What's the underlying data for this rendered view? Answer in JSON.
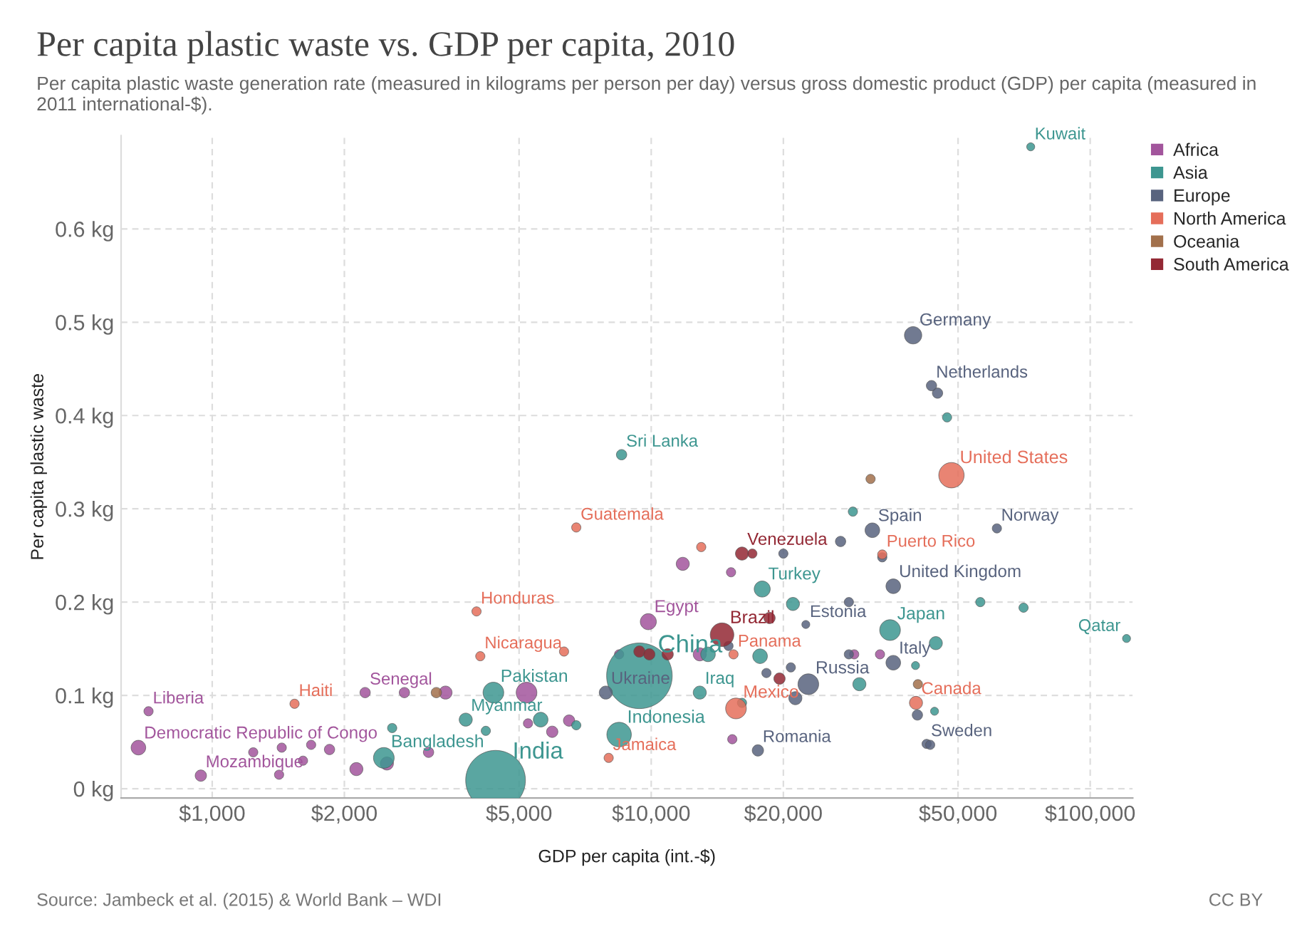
{
  "chart_data": {
    "type": "bubble",
    "title": "Per capita plastic waste vs. GDP per capita, 2010",
    "subtitle": "Per capita plastic waste generation rate (measured in kilograms per person per day) versus gross domestic product (GDP) per capita (measured in 2011 international-$).",
    "xlabel": "GDP per capita (int.-$)",
    "ylabel": "Per capita plastic waste",
    "log": "x",
    "grid": true,
    "legend": "right",
    "xlim": [
      620,
      125000
    ],
    "ylim": [
      -0.01,
      0.7
    ],
    "xticks": [
      {
        "value": 1000,
        "label": "$1,000"
      },
      {
        "value": 2000,
        "label": "$2,000"
      },
      {
        "value": 5000,
        "label": "$5,000"
      },
      {
        "value": 10000,
        "label": "$10,000"
      },
      {
        "value": 20000,
        "label": "$20,000"
      },
      {
        "value": 50000,
        "label": "$50,000"
      },
      {
        "value": 100000,
        "label": "$100,000"
      }
    ],
    "yticks": [
      {
        "value": 0,
        "label": "0 kg"
      },
      {
        "value": 0.1,
        "label": "0.1 kg"
      },
      {
        "value": 0.2,
        "label": "0.2 kg"
      },
      {
        "value": 0.3,
        "label": "0.3 kg"
      },
      {
        "value": 0.4,
        "label": "0.4 kg"
      },
      {
        "value": 0.5,
        "label": "0.5 kg"
      },
      {
        "value": 0.6,
        "label": "0.6 kg"
      }
    ],
    "series": [
      {
        "name": "Africa",
        "color": "#a2559c",
        "x": [
          679,
          716,
          942,
          1240,
          1440,
          1680,
          1850,
          1610,
          1420,
          2130,
          2500,
          2230,
          2740,
          3400,
          5200,
          3110,
          5240,
          5950,
          6500,
          8450,
          9850,
          11800,
          15200,
          12900,
          15300,
          29000,
          33200
        ],
        "values": [
          0.044,
          0.083,
          0.014,
          0.039,
          0.044,
          0.047,
          0.042,
          0.03,
          0.015,
          0.021,
          0.027,
          0.103,
          0.103,
          0.103,
          0.103,
          0.039,
          0.07,
          0.061,
          0.073,
          0.144,
          0.179,
          0.241,
          0.232,
          0.144,
          0.053,
          0.144,
          0.144
        ],
        "sizes": [
          0.05,
          0.02,
          0.03,
          0.02,
          0.02,
          0.02,
          0.025,
          0.02,
          0.02,
          0.04,
          0.04,
          0.025,
          0.025,
          0.04,
          0.1,
          0.025,
          0.02,
          0.03,
          0.03,
          0.02,
          0.06,
          0.04,
          0.02,
          0.04,
          0.02,
          0.02,
          0.02
        ]
      },
      {
        "name": "Asia",
        "color": "#3d9690",
        "x": [
          4420,
          9400,
          4370,
          3780,
          2460,
          2570,
          4200,
          5600,
          6750,
          8450,
          8560,
          12900,
          13470,
          17900,
          21030,
          17700,
          29800,
          35000,
          28800,
          44500,
          40000,
          44200,
          56200,
          70500,
          121000,
          73200,
          47200,
          16100
        ],
        "values": [
          0.009,
          0.121,
          0.103,
          0.074,
          0.033,
          0.065,
          0.062,
          0.074,
          0.068,
          0.058,
          0.358,
          0.103,
          0.144,
          0.214,
          0.198,
          0.142,
          0.112,
          0.17,
          0.297,
          0.156,
          0.132,
          0.083,
          0.2,
          0.194,
          0.161,
          0.688,
          0.398,
          0.092
        ],
        "sizes": [
          0.83,
          1,
          0.1,
          0.04,
          0.1,
          0.02,
          0.02,
          0.05,
          0.02,
          0.14,
          0.025,
          0.04,
          0.05,
          0.06,
          0.04,
          0.05,
          0.04,
          0.1,
          0.02,
          0.04,
          0.015,
          0.015,
          0.02,
          0.02,
          0.015,
          0.015,
          0.02,
          0.02
        ]
      },
      {
        "name": "Europe",
        "color": "#58637e",
        "x": [
          39500,
          44900,
          43500,
          31900,
          61300,
          35600,
          35600,
          42400,
          43200,
          40400,
          27000,
          28200,
          28200,
          33600,
          22500,
          22800,
          21300,
          20800,
          18300,
          20000,
          17500,
          7880,
          15000
        ],
        "values": [
          0.486,
          0.424,
          0.432,
          0.277,
          0.279,
          0.217,
          0.135,
          0.048,
          0.047,
          0.079,
          0.265,
          0.2,
          0.144,
          0.248,
          0.176,
          0.112,
          0.097,
          0.13,
          0.124,
          0.252,
          0.041,
          0.103,
          0.153
        ],
        "sizes": [
          0.07,
          0.025,
          0.025,
          0.05,
          0.02,
          0.05,
          0.05,
          0.02,
          0.02,
          0.025,
          0.025,
          0.02,
          0.02,
          0.02,
          0.015,
          0.1,
          0.04,
          0.02,
          0.02,
          0.02,
          0.03,
          0.04,
          0.02
        ]
      },
      {
        "name": "North America",
        "color": "#e56e5a",
        "x": [
          48300,
          33600,
          40100,
          15600,
          15400,
          6750,
          4000,
          4080,
          6330,
          1540,
          8000,
          13000
        ],
        "values": [
          0.336,
          0.251,
          0.092,
          0.086,
          0.144,
          0.28,
          0.19,
          0.142,
          0.147,
          0.091,
          0.033,
          0.259
        ],
        "sizes": [
          0.15,
          0.02,
          0.04,
          0.1,
          0.02,
          0.02,
          0.02,
          0.02,
          0.02,
          0.02,
          0.02,
          0.02
        ]
      },
      {
        "name": "Oceania",
        "color": "#a2704b",
        "x": [
          3240,
          31600,
          40500
        ],
        "values": [
          0.103,
          0.332,
          0.112
        ],
        "sizes": [
          0.025,
          0.02,
          0.02
        ]
      },
      {
        "name": "South America",
        "color": "#932834",
        "x": [
          14500,
          16100,
          17000,
          18600,
          19600,
          9400,
          9900,
          10900
        ],
        "values": [
          0.165,
          0.252,
          0.252,
          0.183,
          0.118,
          0.147,
          0.144,
          0.144
        ],
        "sizes": [
          0.13,
          0.04,
          0.02,
          0.03,
          0.03,
          0.03,
          0.03,
          0.03
        ]
      }
    ],
    "annotations": [
      {
        "text": "Democratic Republic of Congo",
        "x": 679,
        "y": 0.044
      },
      {
        "text": "Liberia",
        "x": 716,
        "y": 0.083
      },
      {
        "text": "Mozambique",
        "x": 942,
        "y": 0.014
      },
      {
        "text": "Senegal",
        "x": 2230,
        "y": 0.103
      },
      {
        "text": "Egypt",
        "x": 9850,
        "y": 0.179
      },
      {
        "text": "India",
        "x": 4420,
        "y": 0.009
      },
      {
        "text": "China",
        "x": 9400,
        "y": 0.121
      },
      {
        "text": "Pakistan",
        "x": 4370,
        "y": 0.103
      },
      {
        "text": "Myanmar",
        "x": 3780,
        "y": 0.074
      },
      {
        "text": "Bangladesh",
        "x": 2460,
        "y": 0.033
      },
      {
        "text": "Indonesia",
        "x": 8450,
        "y": 0.058
      },
      {
        "text": "Sri Lanka",
        "x": 8560,
        "y": 0.358
      },
      {
        "text": "Iraq",
        "x": 12900,
        "y": 0.103
      },
      {
        "text": "Turkey",
        "x": 17900,
        "y": 0.214
      },
      {
        "text": "Japan",
        "x": 35000,
        "y": 0.17
      },
      {
        "text": "Qatar",
        "x": 121000,
        "y": 0.161
      },
      {
        "text": "Kuwait",
        "x": 73200,
        "y": 0.688
      },
      {
        "text": "Germany",
        "x": 39500,
        "y": 0.486
      },
      {
        "text": "Netherlands",
        "x": 43500,
        "y": 0.432
      },
      {
        "text": "Spain",
        "x": 31900,
        "y": 0.277
      },
      {
        "text": "Norway",
        "x": 61300,
        "y": 0.279
      },
      {
        "text": "United Kingdom",
        "x": 35600,
        "y": 0.217
      },
      {
        "text": "Italy",
        "x": 35600,
        "y": 0.135
      },
      {
        "text": "Sweden",
        "x": 42400,
        "y": 0.048
      },
      {
        "text": "Estonia",
        "x": 22500,
        "y": 0.176
      },
      {
        "text": "Russia",
        "x": 22800,
        "y": 0.112
      },
      {
        "text": "Romania",
        "x": 17500,
        "y": 0.041
      },
      {
        "text": "Ukraine",
        "x": 7880,
        "y": 0.103
      },
      {
        "text": "United States",
        "x": 48300,
        "y": 0.336
      },
      {
        "text": "Puerto Rico",
        "x": 33600,
        "y": 0.251
      },
      {
        "text": "Canada",
        "x": 40100,
        "y": 0.092
      },
      {
        "text": "Mexico",
        "x": 15600,
        "y": 0.086
      },
      {
        "text": "Panama",
        "x": 15400,
        "y": 0.144
      },
      {
        "text": "Guatemala",
        "x": 6750,
        "y": 0.28
      },
      {
        "text": "Honduras",
        "x": 4000,
        "y": 0.19
      },
      {
        "text": "Nicaragua",
        "x": 4080,
        "y": 0.142
      },
      {
        "text": "Haiti",
        "x": 1540,
        "y": 0.091
      },
      {
        "text": "Jamaica",
        "x": 8000,
        "y": 0.033
      },
      {
        "text": "Brazil",
        "x": 14500,
        "y": 0.165
      },
      {
        "text": "Venezuela",
        "x": 16100,
        "y": 0.252
      },
      "Source: Jambeck et al. (2015) & World Bank – WDI",
      "CC BY"
    ]
  }
}
